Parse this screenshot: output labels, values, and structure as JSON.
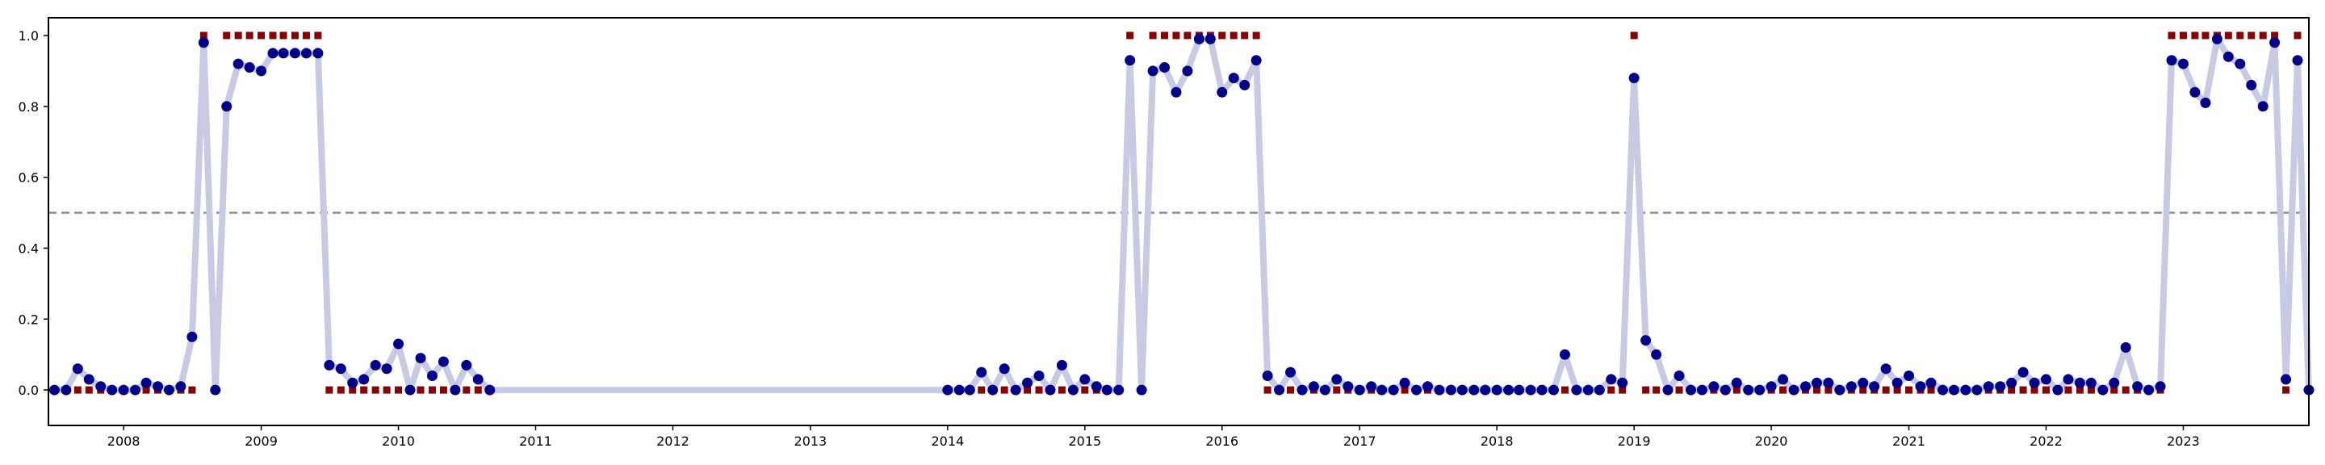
{
  "chart_data": {
    "type": "line",
    "title": "",
    "xlabel": "",
    "ylabel": "",
    "x_range": [
      "2007-06-15",
      "2023-12-01"
    ],
    "ylim": [
      -0.1,
      1.05
    ],
    "grid": false,
    "legend": "none",
    "x_ticks": [
      "2008",
      "2009",
      "2010",
      "2011",
      "2012",
      "2013",
      "2014",
      "2015",
      "2016",
      "2017",
      "2018",
      "2019",
      "2020",
      "2021",
      "2022",
      "2023"
    ],
    "y_ticks": [
      "0.0",
      "0.2",
      "0.4",
      "0.6",
      "0.8",
      "1.0"
    ],
    "threshold": 0.5,
    "colors": {
      "probability_line": "#c8c9e3",
      "probability_marker": "#00008b",
      "binary_marker": "#8b0000",
      "threshold_line": "#8c8c8c",
      "axes": "#000000"
    },
    "probability_series": [
      [
        "2007-07",
        0.0
      ],
      [
        "2007-08",
        0.0
      ],
      [
        "2007-09",
        0.06
      ],
      [
        "2007-10",
        0.03
      ],
      [
        "2007-11",
        0.01
      ],
      [
        "2007-12",
        0.0
      ],
      [
        "2008-01",
        0.0
      ],
      [
        "2008-02",
        0.0
      ],
      [
        "2008-03",
        0.02
      ],
      [
        "2008-04",
        0.01
      ],
      [
        "2008-05",
        0.0
      ],
      [
        "2008-06",
        0.01
      ],
      [
        "2008-07",
        0.15
      ],
      [
        "2008-08",
        0.98
      ],
      [
        "2008-09",
        0.0
      ],
      [
        "2008-10",
        0.8
      ],
      [
        "2008-11",
        0.92
      ],
      [
        "2008-12",
        0.91
      ],
      [
        "2009-01",
        0.9
      ],
      [
        "2009-02",
        0.95
      ],
      [
        "2009-03",
        0.95
      ],
      [
        "2009-04",
        0.95
      ],
      [
        "2009-05",
        0.95
      ],
      [
        "2009-06",
        0.95
      ],
      [
        "2009-07",
        0.07
      ],
      [
        "2009-08",
        0.06
      ],
      [
        "2009-09",
        0.02
      ],
      [
        "2009-10",
        0.03
      ],
      [
        "2009-11",
        0.07
      ],
      [
        "2009-12",
        0.06
      ],
      [
        "2010-01",
        0.13
      ],
      [
        "2010-02",
        0.0
      ],
      [
        "2010-03",
        0.09
      ],
      [
        "2010-04",
        0.04
      ],
      [
        "2010-05",
        0.08
      ],
      [
        "2010-06",
        0.0
      ],
      [
        "2010-07",
        0.07
      ],
      [
        "2010-08",
        0.03
      ],
      [
        "2010-09",
        0.0
      ],
      [
        "2014-01",
        0.0
      ],
      [
        "2014-02",
        0.0
      ],
      [
        "2014-03",
        0.0
      ],
      [
        "2014-04",
        0.05
      ],
      [
        "2014-05",
        0.0
      ],
      [
        "2014-06",
        0.06
      ],
      [
        "2014-07",
        0.0
      ],
      [
        "2014-08",
        0.02
      ],
      [
        "2014-09",
        0.04
      ],
      [
        "2014-10",
        0.0
      ],
      [
        "2014-11",
        0.07
      ],
      [
        "2014-12",
        0.0
      ],
      [
        "2015-01",
        0.03
      ],
      [
        "2015-02",
        0.01
      ],
      [
        "2015-03",
        0.0
      ],
      [
        "2015-04",
        0.0
      ],
      [
        "2015-05",
        0.93
      ],
      [
        "2015-06",
        0.0
      ],
      [
        "2015-07",
        0.9
      ],
      [
        "2015-08",
        0.91
      ],
      [
        "2015-09",
        0.84
      ],
      [
        "2015-10",
        0.9
      ],
      [
        "2015-11",
        0.99
      ],
      [
        "2015-12",
        0.99
      ],
      [
        "2016-01",
        0.84
      ],
      [
        "2016-02",
        0.88
      ],
      [
        "2016-03",
        0.86
      ],
      [
        "2016-04",
        0.93
      ],
      [
        "2016-05",
        0.04
      ],
      [
        "2016-06",
        0.0
      ],
      [
        "2016-07",
        0.05
      ],
      [
        "2016-08",
        0.0
      ],
      [
        "2016-09",
        0.01
      ],
      [
        "2016-10",
        0.0
      ],
      [
        "2016-11",
        0.03
      ],
      [
        "2016-12",
        0.01
      ],
      [
        "2017-01",
        0.0
      ],
      [
        "2017-02",
        0.01
      ],
      [
        "2017-03",
        0.0
      ],
      [
        "2017-04",
        0.0
      ],
      [
        "2017-05",
        0.02
      ],
      [
        "2017-06",
        0.0
      ],
      [
        "2017-07",
        0.01
      ],
      [
        "2017-08",
        0.0
      ],
      [
        "2017-09",
        0.0
      ],
      [
        "2017-10",
        0.0
      ],
      [
        "2017-11",
        0.0
      ],
      [
        "2017-12",
        0.0
      ],
      [
        "2018-01",
        0.0
      ],
      [
        "2018-02",
        0.0
      ],
      [
        "2018-03",
        0.0
      ],
      [
        "2018-04",
        0.0
      ],
      [
        "2018-05",
        0.0
      ],
      [
        "2018-06",
        0.0
      ],
      [
        "2018-07",
        0.1
      ],
      [
        "2018-08",
        0.0
      ],
      [
        "2018-09",
        0.0
      ],
      [
        "2018-10",
        0.0
      ],
      [
        "2018-11",
        0.03
      ],
      [
        "2018-12",
        0.02
      ],
      [
        "2019-01",
        0.88
      ],
      [
        "2019-02",
        0.14
      ],
      [
        "2019-03",
        0.1
      ],
      [
        "2019-04",
        0.0
      ],
      [
        "2019-05",
        0.04
      ],
      [
        "2019-06",
        0.0
      ],
      [
        "2019-07",
        0.0
      ],
      [
        "2019-08",
        0.01
      ],
      [
        "2019-09",
        0.0
      ],
      [
        "2019-10",
        0.02
      ],
      [
        "2019-11",
        0.0
      ],
      [
        "2019-12",
        0.0
      ],
      [
        "2020-01",
        0.01
      ],
      [
        "2020-02",
        0.03
      ],
      [
        "2020-03",
        0.0
      ],
      [
        "2020-04",
        0.01
      ],
      [
        "2020-05",
        0.02
      ],
      [
        "2020-06",
        0.02
      ],
      [
        "2020-07",
        0.0
      ],
      [
        "2020-08",
        0.01
      ],
      [
        "2020-09",
        0.02
      ],
      [
        "2020-10",
        0.01
      ],
      [
        "2020-11",
        0.06
      ],
      [
        "2020-12",
        0.02
      ],
      [
        "2021-01",
        0.04
      ],
      [
        "2021-02",
        0.01
      ],
      [
        "2021-03",
        0.02
      ],
      [
        "2021-04",
        0.0
      ],
      [
        "2021-05",
        0.0
      ],
      [
        "2021-06",
        0.0
      ],
      [
        "2021-07",
        0.0
      ],
      [
        "2021-08",
        0.01
      ],
      [
        "2021-09",
        0.01
      ],
      [
        "2021-10",
        0.02
      ],
      [
        "2021-11",
        0.05
      ],
      [
        "2021-12",
        0.02
      ],
      [
        "2022-01",
        0.03
      ],
      [
        "2022-02",
        0.0
      ],
      [
        "2022-03",
        0.03
      ],
      [
        "2022-04",
        0.02
      ],
      [
        "2022-05",
        0.02
      ],
      [
        "2022-06",
        0.0
      ],
      [
        "2022-07",
        0.02
      ],
      [
        "2022-08",
        0.12
      ],
      [
        "2022-09",
        0.01
      ],
      [
        "2022-10",
        0.0
      ],
      [
        "2022-11",
        0.01
      ],
      [
        "2022-12",
        0.93
      ],
      [
        "2023-01",
        0.92
      ],
      [
        "2023-02",
        0.84
      ],
      [
        "2023-03",
        0.81
      ],
      [
        "2023-04",
        0.99
      ],
      [
        "2023-05",
        0.94
      ],
      [
        "2023-06",
        0.92
      ],
      [
        "2023-07",
        0.86
      ],
      [
        "2023-08",
        0.8
      ],
      [
        "2023-09",
        0.98
      ],
      [
        "2023-10",
        0.03
      ],
      [
        "2023-11",
        0.93
      ],
      [
        "2023-12",
        0.0
      ]
    ],
    "binary_series": [
      [
        "2007-07",
        0
      ],
      [
        "2007-08",
        0
      ],
      [
        "2007-09",
        0
      ],
      [
        "2007-10",
        0
      ],
      [
        "2007-11",
        0
      ],
      [
        "2007-12",
        0
      ],
      [
        "2008-01",
        0
      ],
      [
        "2008-02",
        0
      ],
      [
        "2008-03",
        0
      ],
      [
        "2008-04",
        0
      ],
      [
        "2008-05",
        0
      ],
      [
        "2008-06",
        0
      ],
      [
        "2008-07",
        0
      ],
      [
        "2008-08",
        1
      ],
      [
        "2008-09",
        0
      ],
      [
        "2008-10",
        1
      ],
      [
        "2008-11",
        1
      ],
      [
        "2008-12",
        1
      ],
      [
        "2009-01",
        1
      ],
      [
        "2009-02",
        1
      ],
      [
        "2009-03",
        1
      ],
      [
        "2009-04",
        1
      ],
      [
        "2009-05",
        1
      ],
      [
        "2009-06",
        1
      ],
      [
        "2009-07",
        0
      ],
      [
        "2009-08",
        0
      ],
      [
        "2009-09",
        0
      ],
      [
        "2009-10",
        0
      ],
      [
        "2009-11",
        0
      ],
      [
        "2009-12",
        0
      ],
      [
        "2010-01",
        0
      ],
      [
        "2010-02",
        0
      ],
      [
        "2010-03",
        0
      ],
      [
        "2010-04",
        0
      ],
      [
        "2010-05",
        0
      ],
      [
        "2010-06",
        0
      ],
      [
        "2010-07",
        0
      ],
      [
        "2010-08",
        0
      ],
      [
        "2010-09",
        0
      ],
      [
        "2014-01",
        0
      ],
      [
        "2014-02",
        0
      ],
      [
        "2014-03",
        0
      ],
      [
        "2014-04",
        0
      ],
      [
        "2014-05",
        0
      ],
      [
        "2014-06",
        0
      ],
      [
        "2014-07",
        0
      ],
      [
        "2014-08",
        0
      ],
      [
        "2014-09",
        0
      ],
      [
        "2014-10",
        0
      ],
      [
        "2014-11",
        0
      ],
      [
        "2014-12",
        0
      ],
      [
        "2015-01",
        0
      ],
      [
        "2015-02",
        0
      ],
      [
        "2015-03",
        0
      ],
      [
        "2015-04",
        0
      ],
      [
        "2015-05",
        1
      ],
      [
        "2015-06",
        0
      ],
      [
        "2015-07",
        1
      ],
      [
        "2015-08",
        1
      ],
      [
        "2015-09",
        1
      ],
      [
        "2015-10",
        1
      ],
      [
        "2015-11",
        1
      ],
      [
        "2015-12",
        1
      ],
      [
        "2016-01",
        1
      ],
      [
        "2016-02",
        1
      ],
      [
        "2016-03",
        1
      ],
      [
        "2016-04",
        1
      ],
      [
        "2016-05",
        0
      ],
      [
        "2016-06",
        0
      ],
      [
        "2016-07",
        0
      ],
      [
        "2016-08",
        0
      ],
      [
        "2016-09",
        0
      ],
      [
        "2016-10",
        0
      ],
      [
        "2016-11",
        0
      ],
      [
        "2016-12",
        0
      ],
      [
        "2017-01",
        0
      ],
      [
        "2017-02",
        0
      ],
      [
        "2017-03",
        0
      ],
      [
        "2017-04",
        0
      ],
      [
        "2017-05",
        0
      ],
      [
        "2017-06",
        0
      ],
      [
        "2017-07",
        0
      ],
      [
        "2017-08",
        0
      ],
      [
        "2017-09",
        0
      ],
      [
        "2017-10",
        0
      ],
      [
        "2017-11",
        0
      ],
      [
        "2017-12",
        0
      ],
      [
        "2018-01",
        0
      ],
      [
        "2018-02",
        0
      ],
      [
        "2018-03",
        0
      ],
      [
        "2018-04",
        0
      ],
      [
        "2018-05",
        0
      ],
      [
        "2018-06",
        0
      ],
      [
        "2018-07",
        0
      ],
      [
        "2018-08",
        0
      ],
      [
        "2018-09",
        0
      ],
      [
        "2018-10",
        0
      ],
      [
        "2018-11",
        0
      ],
      [
        "2018-12",
        0
      ],
      [
        "2019-01",
        1
      ],
      [
        "2019-02",
        0
      ],
      [
        "2019-03",
        0
      ],
      [
        "2019-04",
        0
      ],
      [
        "2019-05",
        0
      ],
      [
        "2019-06",
        0
      ],
      [
        "2019-07",
        0
      ],
      [
        "2019-08",
        0
      ],
      [
        "2019-09",
        0
      ],
      [
        "2019-10",
        0
      ],
      [
        "2019-11",
        0
      ],
      [
        "2019-12",
        0
      ],
      [
        "2020-01",
        0
      ],
      [
        "2020-02",
        0
      ],
      [
        "2020-03",
        0
      ],
      [
        "2020-04",
        0
      ],
      [
        "2020-05",
        0
      ],
      [
        "2020-06",
        0
      ],
      [
        "2020-07",
        0
      ],
      [
        "2020-08",
        0
      ],
      [
        "2020-09",
        0
      ],
      [
        "2020-10",
        0
      ],
      [
        "2020-11",
        0
      ],
      [
        "2020-12",
        0
      ],
      [
        "2021-01",
        0
      ],
      [
        "2021-02",
        0
      ],
      [
        "2021-03",
        0
      ],
      [
        "2021-04",
        0
      ],
      [
        "2021-05",
        0
      ],
      [
        "2021-06",
        0
      ],
      [
        "2021-07",
        0
      ],
      [
        "2021-08",
        0
      ],
      [
        "2021-09",
        0
      ],
      [
        "2021-10",
        0
      ],
      [
        "2021-11",
        0
      ],
      [
        "2021-12",
        0
      ],
      [
        "2022-01",
        0
      ],
      [
        "2022-02",
        0
      ],
      [
        "2022-03",
        0
      ],
      [
        "2022-04",
        0
      ],
      [
        "2022-05",
        0
      ],
      [
        "2022-06",
        0
      ],
      [
        "2022-07",
        0
      ],
      [
        "2022-08",
        0
      ],
      [
        "2022-09",
        0
      ],
      [
        "2022-10",
        0
      ],
      [
        "2022-11",
        0
      ],
      [
        "2022-12",
        1
      ],
      [
        "2023-01",
        1
      ],
      [
        "2023-02",
        1
      ],
      [
        "2023-03",
        1
      ],
      [
        "2023-04",
        1
      ],
      [
        "2023-05",
        1
      ],
      [
        "2023-06",
        1
      ],
      [
        "2023-07",
        1
      ],
      [
        "2023-08",
        1
      ],
      [
        "2023-09",
        1
      ],
      [
        "2023-10",
        0
      ],
      [
        "2023-11",
        1
      ],
      [
        "2023-12",
        0
      ]
    ]
  }
}
